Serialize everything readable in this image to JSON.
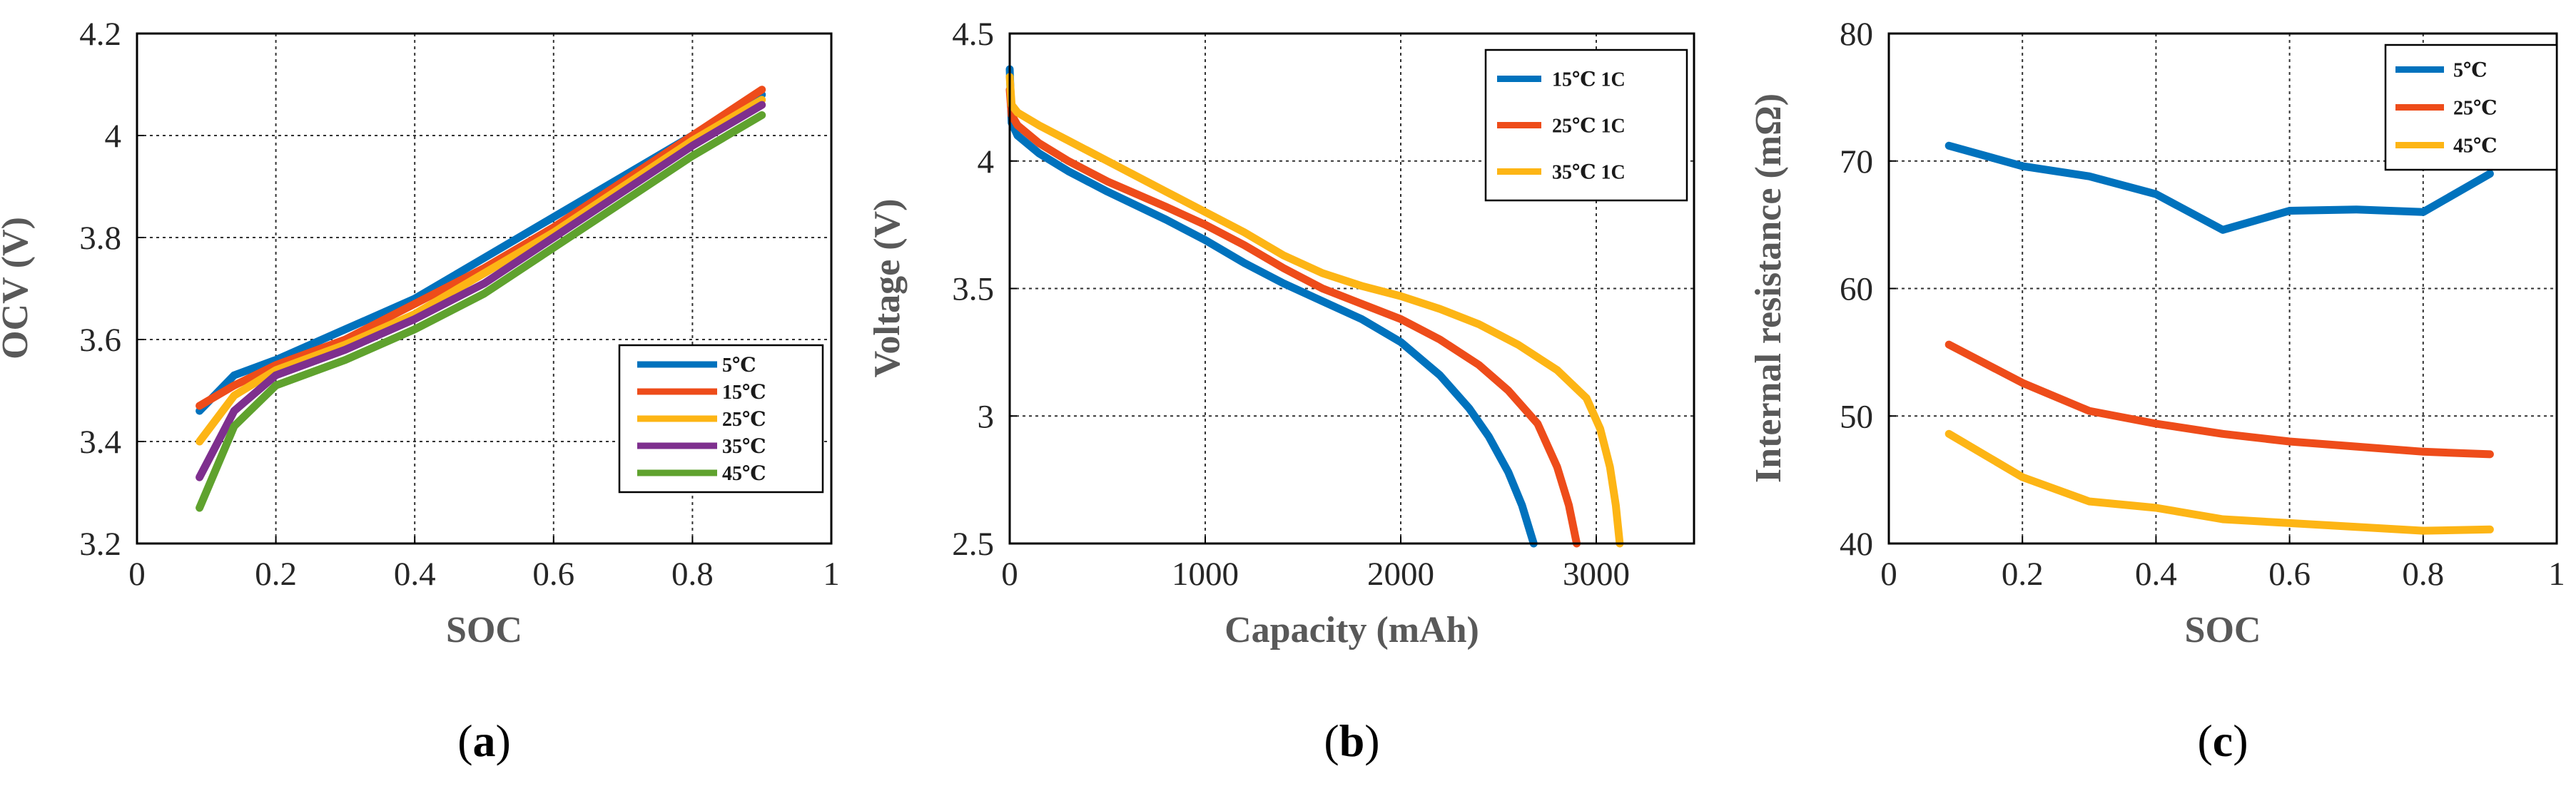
{
  "chart_data": [
    {
      "type": "line",
      "panel": "a",
      "caption": "(a)",
      "xlabel": "SOC",
      "ylabel": "OCV (V)",
      "xlim": [
        0,
        1
      ],
      "ylim": [
        3.2,
        4.2
      ],
      "xticks": [
        0,
        0.2,
        0.4,
        0.6,
        0.8,
        1
      ],
      "xtick_labels": [
        "0",
        "0.2",
        "0.4",
        "0.6",
        "0.8",
        "1"
      ],
      "yticks": [
        3.2,
        3.4,
        3.6,
        3.8,
        4,
        4.2
      ],
      "ytick_labels": [
        "3.2",
        "3.4",
        "3.6",
        "3.8",
        "4",
        "4.2"
      ],
      "grid": true,
      "legend_position": "center-right",
      "series": [
        {
          "name": "5℃",
          "color": "#0072BD",
          "x": [
            0.09,
            0.14,
            0.2,
            0.3,
            0.4,
            0.5,
            0.6,
            0.7,
            0.8,
            0.9
          ],
          "y": [
            3.46,
            3.53,
            3.56,
            3.62,
            3.68,
            3.76,
            3.84,
            3.92,
            4.0,
            4.08
          ]
        },
        {
          "name": "15℃",
          "color": "#EE4C1A",
          "x": [
            0.09,
            0.14,
            0.2,
            0.3,
            0.4,
            0.5,
            0.6,
            0.7,
            0.8,
            0.9
          ],
          "y": [
            3.47,
            3.51,
            3.55,
            3.6,
            3.67,
            3.74,
            3.82,
            3.91,
            4.0,
            4.09
          ]
        },
        {
          "name": "25℃",
          "color": "#FDB515",
          "x": [
            0.09,
            0.14,
            0.2,
            0.3,
            0.4,
            0.5,
            0.6,
            0.7,
            0.8,
            0.9
          ],
          "y": [
            3.4,
            3.49,
            3.54,
            3.59,
            3.65,
            3.73,
            3.81,
            3.9,
            3.99,
            4.07
          ]
        },
        {
          "name": "35℃",
          "color": "#7E2F8E",
          "x": [
            0.09,
            0.14,
            0.2,
            0.3,
            0.4,
            0.5,
            0.6,
            0.7,
            0.8,
            0.9
          ],
          "y": [
            3.33,
            3.46,
            3.53,
            3.58,
            3.64,
            3.71,
            3.8,
            3.89,
            3.98,
            4.06
          ]
        },
        {
          "name": "45℃",
          "color": "#5FA22E",
          "x": [
            0.09,
            0.14,
            0.2,
            0.3,
            0.4,
            0.5,
            0.6,
            0.7,
            0.8,
            0.9
          ],
          "y": [
            3.27,
            3.43,
            3.51,
            3.56,
            3.62,
            3.69,
            3.78,
            3.87,
            3.96,
            4.04
          ]
        }
      ]
    },
    {
      "type": "line",
      "panel": "b",
      "caption": "(b)",
      "xlabel": "Capacity (mAh)",
      "ylabel": "Voltage (V)",
      "xlim": [
        0,
        3500
      ],
      "ylim": [
        2.5,
        4.5
      ],
      "xticks": [
        0,
        1000,
        2000,
        3000
      ],
      "xtick_labels": [
        "0",
        "1000",
        "2000",
        "3000"
      ],
      "yticks": [
        2.5,
        3,
        3.5,
        4,
        4.5
      ],
      "ytick_labels": [
        "2.5",
        "3",
        "3.5",
        "4",
        "4.5"
      ],
      "grid": true,
      "legend_position": "top-right",
      "series": [
        {
          "name": "15℃ 1C",
          "color": "#0072BD",
          "x": [
            0,
            10,
            40,
            150,
            300,
            500,
            800,
            1000,
            1200,
            1400,
            1600,
            1800,
            2000,
            2200,
            2350,
            2450,
            2550,
            2620,
            2680
          ],
          "y": [
            4.36,
            4.15,
            4.1,
            4.03,
            3.96,
            3.88,
            3.77,
            3.69,
            3.6,
            3.52,
            3.45,
            3.38,
            3.29,
            3.16,
            3.03,
            2.92,
            2.78,
            2.65,
            2.5
          ]
        },
        {
          "name": "25℃ 1C",
          "color": "#EE4C1A",
          "x": [
            0,
            10,
            40,
            150,
            300,
            500,
            800,
            1000,
            1200,
            1400,
            1600,
            1800,
            2000,
            2200,
            2400,
            2550,
            2700,
            2800,
            2860,
            2900
          ],
          "y": [
            4.28,
            4.18,
            4.14,
            4.07,
            4.0,
            3.92,
            3.82,
            3.75,
            3.67,
            3.58,
            3.5,
            3.44,
            3.38,
            3.3,
            3.2,
            3.1,
            2.97,
            2.8,
            2.65,
            2.5
          ]
        },
        {
          "name": "35℃ 1C",
          "color": "#FDB515",
          "x": [
            0,
            10,
            40,
            150,
            300,
            500,
            800,
            1000,
            1200,
            1400,
            1600,
            1800,
            2000,
            2200,
            2400,
            2600,
            2800,
            2950,
            3020,
            3070,
            3100,
            3120
          ],
          "y": [
            4.33,
            4.22,
            4.19,
            4.14,
            4.08,
            4.0,
            3.88,
            3.8,
            3.72,
            3.63,
            3.56,
            3.51,
            3.47,
            3.42,
            3.36,
            3.28,
            3.18,
            3.07,
            2.95,
            2.8,
            2.65,
            2.5
          ]
        }
      ]
    },
    {
      "type": "line",
      "panel": "c",
      "caption": "(c)",
      "xlabel": "SOC",
      "ylabel": "Internal resistance (mΩ)",
      "xlim": [
        0,
        1
      ],
      "ylim": [
        40,
        80
      ],
      "xticks": [
        0,
        0.2,
        0.4,
        0.6,
        0.8,
        1
      ],
      "xtick_labels": [
        "0",
        "0.2",
        "0.4",
        "0.6",
        "0.8",
        "1"
      ],
      "yticks": [
        40,
        50,
        60,
        70,
        80
      ],
      "ytick_labels": [
        "40",
        "50",
        "60",
        "70",
        "80"
      ],
      "grid": true,
      "legend_position": "top-right",
      "series": [
        {
          "name": "5℃",
          "color": "#0072BD",
          "x": [
            0.09,
            0.2,
            0.3,
            0.4,
            0.5,
            0.6,
            0.7,
            0.8,
            0.9
          ],
          "y": [
            71.2,
            69.6,
            68.8,
            67.4,
            64.6,
            66.1,
            66.2,
            66.0,
            69.0
          ]
        },
        {
          "name": "25℃",
          "color": "#EE4C1A",
          "x": [
            0.09,
            0.2,
            0.3,
            0.4,
            0.5,
            0.6,
            0.7,
            0.8,
            0.9
          ],
          "y": [
            55.6,
            52.6,
            50.4,
            49.4,
            48.6,
            48.0,
            47.6,
            47.2,
            47.0
          ]
        },
        {
          "name": "45℃",
          "color": "#FDB515",
          "x": [
            0.09,
            0.2,
            0.3,
            0.4,
            0.5,
            0.6,
            0.7,
            0.8,
            0.9
          ],
          "y": [
            48.6,
            45.2,
            43.3,
            42.8,
            41.9,
            41.6,
            41.3,
            41.0,
            41.1
          ]
        }
      ]
    }
  ]
}
